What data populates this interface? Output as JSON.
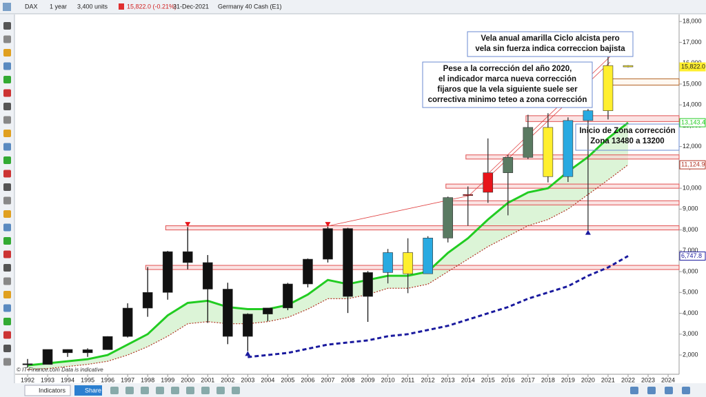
{
  "toolbar": {
    "symbol": "DAX",
    "period": "1 year",
    "units": "3,400 units",
    "price": "15,822.0 (-0.21%)",
    "date": "31-Dec-2021",
    "instrument": "Germany 40 Cash (E1)"
  },
  "chart_data": {
    "type": "candlestick",
    "x": [
      1992,
      1993,
      1994,
      1995,
      1996,
      1997,
      1998,
      1999,
      2000,
      2001,
      2002,
      2003,
      2004,
      2005,
      2006,
      2007,
      2008,
      2009,
      2010,
      2011,
      2012,
      2013,
      2014,
      2015,
      2016,
      2017,
      2018,
      2019,
      2020,
      2021,
      2022
    ],
    "open": [
      1580,
      1545,
      2267,
      2107,
      2254,
      2889,
      4250,
      5002,
      6958,
      6434,
      5160,
      2893,
      3965,
      4256,
      5408,
      6597,
      8067,
      4810,
      5957,
      6914,
      5898,
      7612,
      9700,
      9806,
      10743,
      11481,
      12918,
      10559,
      13249,
      13719,
      15885
    ],
    "high": [
      1810,
      2267,
      2270,
      2320,
      2900,
      4480,
      6217,
      6992,
      8136,
      6795,
      5467,
      4000,
      4260,
      5460,
      6630,
      8152,
      8100,
      6026,
      7087,
      7600,
      7700,
      9600,
      10087,
      12390,
      11600,
      13525,
      13600,
      13400,
      13800,
      16300,
      15900
    ],
    "low": [
      1400,
      1540,
      1910,
      1910,
      2250,
      2840,
      3833,
      4654,
      6111,
      3540,
      2520,
      2189,
      3618,
      4150,
      5243,
      6437,
      4014,
      3589,
      5434,
      4966,
      5900,
      7400,
      8200,
      9300,
      8700,
      11400,
      10280,
      10300,
      8000,
      13300,
      15800
    ],
    "close": [
      1545,
      2267,
      2107,
      2254,
      2889,
      4250,
      5002,
      6958,
      6434,
      5160,
      2893,
      3965,
      4256,
      5408,
      6597,
      8067,
      4810,
      5957,
      6914,
      5898,
      7612,
      9552,
      9700,
      10743,
      11481,
      12918,
      10559,
      13249,
      13719,
      15885,
      15822
    ],
    "colors": [
      "#111111",
      "#111111",
      "#111111",
      "#111111",
      "#111111",
      "#111111",
      "#111111",
      "#111111",
      "#111111",
      "#111111",
      "#111111",
      "#111111",
      "#111111",
      "#111111",
      "#111111",
      "#111111",
      "#111111",
      "#111111",
      "#29aae1",
      "#ffef2e",
      "#29aae1",
      "#5a7a62",
      "#e8141a",
      "#e8141a",
      "#5a7a62",
      "#5a7a62",
      "#ffef2e",
      "#29aae1",
      "#29aae1",
      "#ffef2e",
      "#ffef2e"
    ],
    "series": [
      {
        "color": "#22cc22",
        "style": "solid",
        "values": [
          1500,
          1600,
          1700,
          1800,
          2000,
          2500,
          3000,
          3900,
          4500,
          4600,
          4300,
          4200,
          4200,
          4400,
          4900,
          5600,
          5400,
          5600,
          5800,
          5800,
          6000,
          6900,
          7600,
          8500,
          9300,
          9800,
          10000,
          10800,
          11500,
          12400,
          13143
        ]
      },
      {
        "color": "#b03020",
        "style": "dotted",
        "values": [
          1300,
          1350,
          1450,
          1550,
          1700,
          2000,
          2400,
          2900,
          3500,
          3600,
          3500,
          3500,
          3600,
          3800,
          4200,
          4700,
          4700,
          4900,
          5200,
          5200,
          5400,
          6000,
          6600,
          7200,
          7700,
          8200,
          8500,
          9000,
          9700,
          10400,
          11125
        ]
      },
      {
        "color": "#1a1a9e",
        "style": "dashed",
        "values": [
          null,
          null,
          null,
          null,
          null,
          null,
          null,
          null,
          null,
          null,
          null,
          1900,
          2000,
          2100,
          2300,
          2500,
          2600,
          2700,
          2900,
          3000,
          3200,
          3400,
          3700,
          4000,
          4300,
          4700,
          5000,
          5300,
          5800,
          6200,
          6748
        ]
      }
    ],
    "zones": [
      {
        "low": 8000,
        "high": 8200,
        "start": 1998.9
      },
      {
        "low": 6100,
        "high": 6300,
        "start": 1997.9
      },
      {
        "low": 9200,
        "high": 9400,
        "start": 2012.9
      },
      {
        "low": 10000,
        "high": 10200,
        "start": 2012.9
      },
      {
        "low": 11400,
        "high": 11600,
        "start": 2013.9
      },
      {
        "low": 13200,
        "high": 13480,
        "start": 2016.9
      },
      {
        "low": 14950,
        "high": 15250,
        "start": 2020.9
      }
    ],
    "markers": [
      {
        "x": 2000,
        "y": 8150,
        "dir": "down",
        "color": "#e8141a"
      },
      {
        "x": 2007,
        "y": 8150,
        "dir": "down",
        "color": "#e8141a"
      },
      {
        "x": 2003,
        "y": 2189,
        "dir": "up",
        "color": "#1a1a9e"
      },
      {
        "x": 2020,
        "y": 8000,
        "dir": "up",
        "color": "#1a1a9e"
      }
    ],
    "price_labels": [
      {
        "value": 15822,
        "label": "15,822.0",
        "color": "#ffef2e"
      },
      {
        "value": 13143.4,
        "label": "13,143.4",
        "color": "#22cc22"
      },
      {
        "value": 11124.9,
        "label": "11,124.9",
        "color": "#b03020"
      },
      {
        "value": 6747.8,
        "label": "6,747.8",
        "color": "#1a1a9e"
      }
    ],
    "annotations": [
      {
        "lines": [
          "Vela anual amarilla Ciclo alcista pero",
          "vela sin fuerza indica correccion bajista"
        ]
      },
      {
        "lines": [
          "Pese a la corrección del año 2020,",
          "el indicador marca nueva corrección",
          "fijaros que la vela siguiente suele ser",
          "correctiva minimo teteo a zona corrección"
        ]
      },
      {
        "lines": [
          "Inicio de Zona corrección",
          "Zona 13480 a 13200"
        ]
      }
    ],
    "watermark": "© IT-Finance.com  Data is indicative",
    "xlim": [
      1991.38,
      2024.55
    ],
    "xticks": [
      1992,
      1993,
      1994,
      1995,
      1996,
      1997,
      1998,
      1999,
      2000,
      2001,
      2002,
      2003,
      2004,
      2005,
      2006,
      2007,
      2008,
      2009,
      2010,
      2011,
      2012,
      2013,
      2014,
      2015,
      2016,
      2017,
      2018,
      2019,
      2020,
      2021,
      2022,
      2023,
      2024
    ],
    "ylim": [
      1076,
      18337
    ],
    "yticks": [
      {
        "value": 2000,
        "label": "2,000"
      },
      {
        "value": 3000,
        "label": "3,000"
      },
      {
        "value": 4000,
        "label": "4,000"
      },
      {
        "value": 5000,
        "label": "5,000"
      },
      {
        "value": 6000,
        "label": "6,000"
      },
      {
        "value": 7000,
        "label": "7,000"
      },
      {
        "value": 8000,
        "label": "8,000"
      },
      {
        "value": 9000,
        "label": "9,000"
      },
      {
        "value": 10000,
        "label": "10,000"
      },
      {
        "value": 11000,
        "label": "11,000"
      },
      {
        "value": 12000,
        "label": "12,000"
      },
      {
        "value": 13000,
        "label": "13,000"
      },
      {
        "value": 14000,
        "label": "14,000"
      },
      {
        "value": 15000,
        "label": "15,000"
      },
      {
        "value": 16000,
        "label": "16,000"
      },
      {
        "value": 17000,
        "label": "17,000"
      },
      {
        "value": 18000,
        "label": "18,000"
      }
    ]
  },
  "bottom_bar": {
    "indicators": "Indicators",
    "share": "Share"
  }
}
